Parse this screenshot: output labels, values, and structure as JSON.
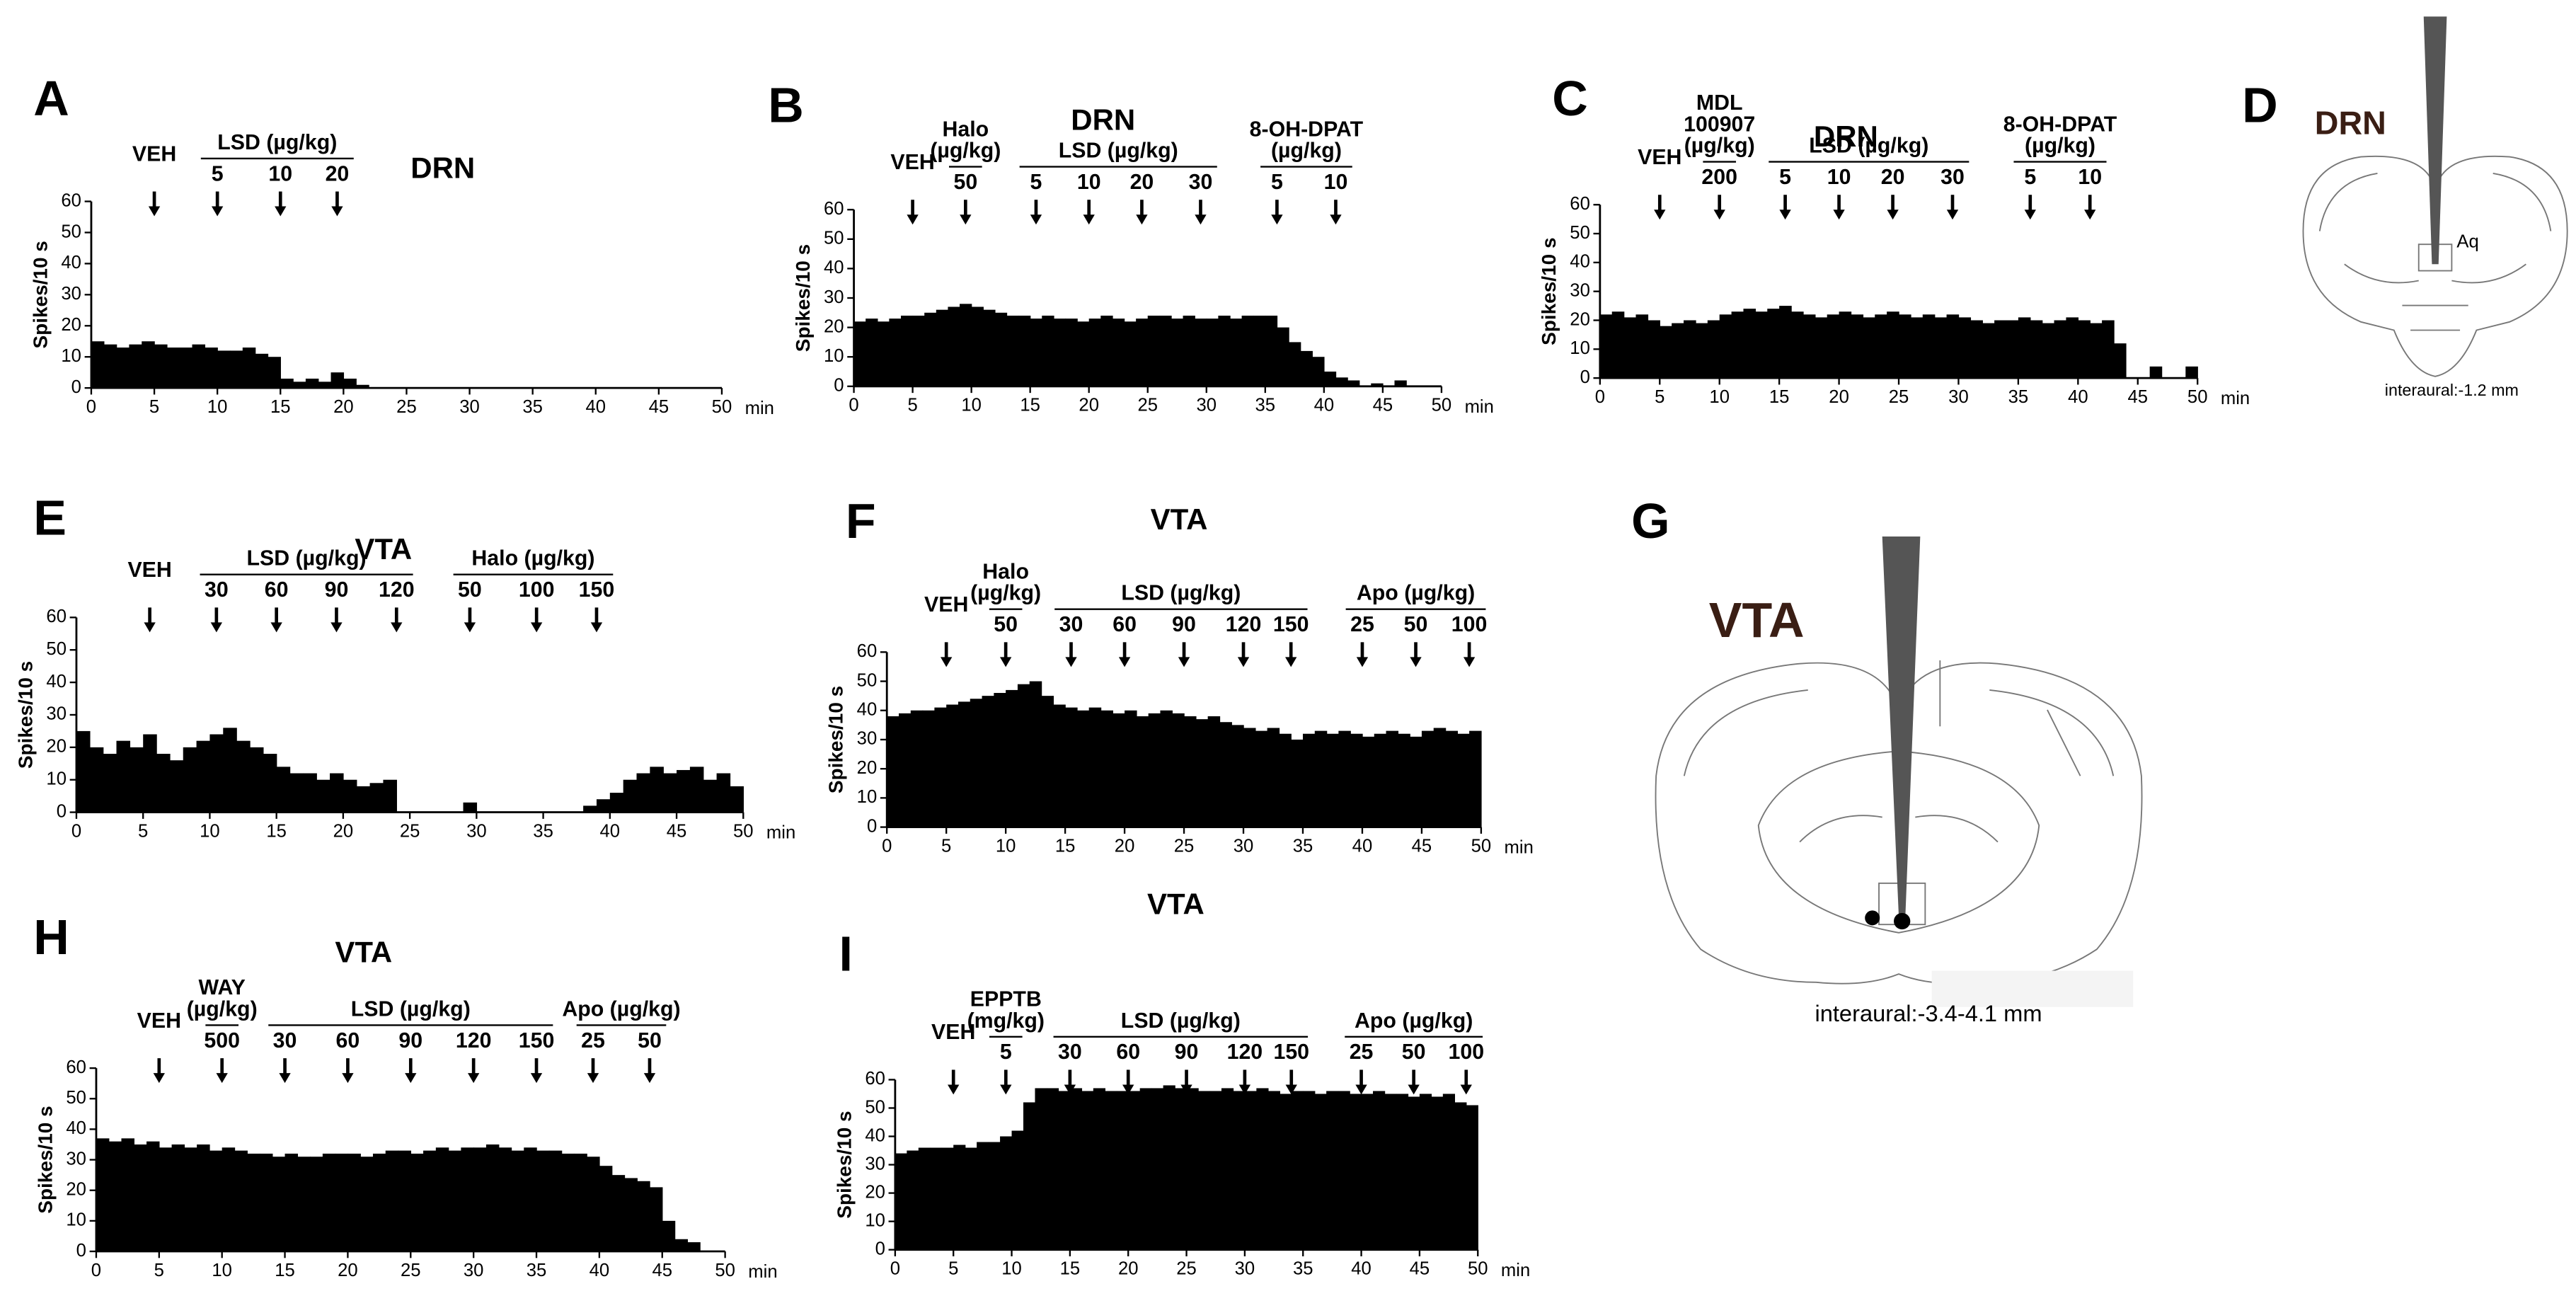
{
  "chart_data": [
    {
      "type": "histogram",
      "label": "A",
      "title": "DRN",
      "ylabel": "Spikes/10 s",
      "xlabel": "min",
      "color": "#000000",
      "bins": [
        0,
        1,
        2,
        3,
        4,
        5,
        6,
        7,
        8,
        9,
        10,
        11,
        12,
        13,
        14,
        15,
        16,
        17,
        18,
        19,
        20,
        21,
        22,
        23,
        24,
        25,
        26,
        27,
        28,
        29,
        30,
        31,
        32,
        33,
        34,
        35,
        36,
        37,
        38,
        39,
        40,
        41,
        42,
        43,
        44,
        45,
        46,
        47,
        48,
        49,
        50
      ],
      "values": [
        15,
        14,
        13,
        14,
        15,
        14,
        13,
        13,
        14,
        13,
        12,
        12,
        13,
        11,
        10,
        3,
        2,
        3,
        2,
        5,
        3,
        1,
        0,
        0,
        0,
        0,
        0,
        0,
        0,
        0,
        0,
        0,
        0,
        0,
        0,
        0,
        0,
        0,
        0,
        0,
        0,
        0,
        0,
        0,
        0,
        0,
        0,
        0,
        0,
        0
      ],
      "xlim": [
        0,
        50
      ],
      "xticks": [
        0,
        5,
        10,
        15,
        20,
        25,
        30,
        35,
        40,
        45,
        50
      ],
      "ylim": [
        0,
        60
      ],
      "yticks": [
        0,
        10,
        20,
        30,
        40,
        50,
        60
      ],
      "markers": [
        {
          "label": "VEH",
          "x": 5
        }
      ],
      "groups": [
        {
          "name": [
            "LSD (µg/kg)"
          ],
          "doses": [
            {
              "label": "5",
              "x": 10
            },
            {
              "label": "10",
              "x": 15
            },
            {
              "label": "20",
              "x": 19.5
            }
          ]
        }
      ]
    },
    {
      "type": "histogram",
      "label": "B",
      "title": "DRN",
      "ylabel": "Spikes/10 s",
      "xlabel": "min",
      "color": "#000000",
      "bins": [
        0,
        1,
        2,
        3,
        4,
        5,
        6,
        7,
        8,
        9,
        10,
        11,
        12,
        13,
        14,
        15,
        16,
        17,
        18,
        19,
        20,
        21,
        22,
        23,
        24,
        25,
        26,
        27,
        28,
        29,
        30,
        31,
        32,
        33,
        34,
        35,
        36,
        37,
        38,
        39,
        40,
        41,
        42,
        43,
        44,
        45,
        46,
        47,
        48,
        49,
        50
      ],
      "values": [
        22,
        23,
        22,
        23,
        24,
        24,
        25,
        26,
        27,
        28,
        27,
        26,
        25,
        24,
        24,
        23,
        24,
        23,
        23,
        22,
        23,
        24,
        23,
        22,
        23,
        24,
        24,
        23,
        24,
        23,
        23,
        24,
        23,
        24,
        24,
        24,
        20,
        15,
        12,
        10,
        5,
        3,
        2,
        0,
        1,
        0,
        2,
        0,
        0,
        0
      ],
      "xlim": [
        0,
        50
      ],
      "xticks": [
        0,
        5,
        10,
        15,
        20,
        25,
        30,
        35,
        40,
        45,
        50
      ],
      "ylim": [
        0,
        60
      ],
      "yticks": [
        0,
        10,
        20,
        30,
        40,
        50,
        60
      ],
      "markers": [
        {
          "label": "VEH",
          "x": 5
        }
      ],
      "groups": [
        {
          "name": [
            "Halo",
            "(µg/kg)"
          ],
          "doses": [
            {
              "label": "50",
              "x": 9.5
            }
          ]
        },
        {
          "name": [
            "LSD (µg/kg)"
          ],
          "doses": [
            {
              "label": "5",
              "x": 15.5
            },
            {
              "label": "10",
              "x": 20
            },
            {
              "label": "20",
              "x": 24.5
            },
            {
              "label": "30",
              "x": 29.5
            }
          ]
        },
        {
          "name": [
            "8-OH-DPAT",
            "(µg/kg)"
          ],
          "doses": [
            {
              "label": "5",
              "x": 36
            },
            {
              "label": "10",
              "x": 41
            }
          ]
        }
      ]
    },
    {
      "type": "histogram",
      "label": "C",
      "title": "DRN",
      "ylabel": "Spikes/10 s",
      "xlabel": "min",
      "color": "#000000",
      "bins": [
        0,
        1,
        2,
        3,
        4,
        5,
        6,
        7,
        8,
        9,
        10,
        11,
        12,
        13,
        14,
        15,
        16,
        17,
        18,
        19,
        20,
        21,
        22,
        23,
        24,
        25,
        26,
        27,
        28,
        29,
        30,
        31,
        32,
        33,
        34,
        35,
        36,
        37,
        38,
        39,
        40,
        41,
        42,
        43,
        44,
        45,
        46,
        47,
        48,
        49,
        50
      ],
      "values": [
        22,
        23,
        21,
        22,
        20,
        18,
        19,
        20,
        19,
        20,
        22,
        23,
        24,
        23,
        24,
        25,
        23,
        22,
        21,
        22,
        23,
        22,
        21,
        22,
        23,
        22,
        21,
        22,
        21,
        22,
        21,
        20,
        19,
        20,
        20,
        21,
        20,
        19,
        20,
        21,
        20,
        19,
        20,
        12,
        0,
        0,
        4,
        0,
        0,
        4
      ],
      "xlim": [
        0,
        50
      ],
      "xticks": [
        0,
        5,
        10,
        15,
        20,
        25,
        30,
        35,
        40,
        45,
        50
      ],
      "ylim": [
        0,
        60
      ],
      "yticks": [
        0,
        10,
        20,
        30,
        40,
        50,
        60
      ],
      "markers": [
        {
          "label": "VEH",
          "x": 5
        }
      ],
      "groups": [
        {
          "name": [
            "MDL",
            "100907",
            "(µg/kg)"
          ],
          "doses": [
            {
              "label": "200",
              "x": 10
            }
          ]
        },
        {
          "name": [
            "LSD (µg/kg)"
          ],
          "doses": [
            {
              "label": "5",
              "x": 15.5
            },
            {
              "label": "10",
              "x": 20
            },
            {
              "label": "20",
              "x": 24.5
            },
            {
              "label": "30",
              "x": 29.5
            }
          ]
        },
        {
          "name": [
            "8-OH-DPAT",
            "(µg/kg)"
          ],
          "doses": [
            {
              "label": "5",
              "x": 36
            },
            {
              "label": "10",
              "x": 41
            }
          ]
        }
      ]
    },
    {
      "type": "histogram",
      "label": "E",
      "title": "VTA",
      "ylabel": "Spikes/10 s",
      "xlabel": "min",
      "color": "#000000",
      "bins": [
        0,
        1,
        2,
        3,
        4,
        5,
        6,
        7,
        8,
        9,
        10,
        11,
        12,
        13,
        14,
        15,
        16,
        17,
        18,
        19,
        20,
        21,
        22,
        23,
        24,
        25,
        26,
        27,
        28,
        29,
        30,
        31,
        32,
        33,
        34,
        35,
        36,
        37,
        38,
        39,
        40,
        41,
        42,
        43,
        44,
        45,
        46,
        47,
        48,
        49,
        50
      ],
      "values": [
        25,
        20,
        18,
        22,
        20,
        24,
        18,
        16,
        20,
        22,
        24,
        26,
        22,
        20,
        18,
        14,
        12,
        12,
        10,
        12,
        10,
        8,
        9,
        10,
        0,
        0,
        0,
        0,
        0,
        3,
        0,
        0,
        0,
        0,
        0,
        0,
        0,
        0,
        2,
        4,
        6,
        10,
        12,
        14,
        12,
        13,
        14,
        10,
        12,
        8
      ],
      "xlim": [
        0,
        50
      ],
      "xticks": [
        0,
        5,
        10,
        15,
        20,
        25,
        30,
        35,
        40,
        45,
        50
      ],
      "ylim": [
        0,
        60
      ],
      "yticks": [
        0,
        10,
        20,
        30,
        40,
        50,
        60
      ],
      "markers": [
        {
          "label": "VEH",
          "x": 5.5
        }
      ],
      "groups": [
        {
          "name": [
            "LSD (µg/kg)"
          ],
          "doses": [
            {
              "label": "30",
              "x": 10.5
            },
            {
              "label": "60",
              "x": 15
            },
            {
              "label": "90",
              "x": 19.5
            },
            {
              "label": "120",
              "x": 24
            }
          ]
        },
        {
          "name": [
            "Halo (µg/kg)"
          ],
          "doses": [
            {
              "label": "50",
              "x": 29.5
            },
            {
              "label": "100",
              "x": 34.5
            },
            {
              "label": "150",
              "x": 39
            }
          ]
        }
      ]
    },
    {
      "type": "histogram",
      "label": "F",
      "title": "VTA",
      "ylabel": "Spikes/10 s",
      "xlabel": "min",
      "color": "#000000",
      "bins": [
        0,
        1,
        2,
        3,
        4,
        5,
        6,
        7,
        8,
        9,
        10,
        11,
        12,
        13,
        14,
        15,
        16,
        17,
        18,
        19,
        20,
        21,
        22,
        23,
        24,
        25,
        26,
        27,
        28,
        29,
        30,
        31,
        32,
        33,
        34,
        35,
        36,
        37,
        38,
        39,
        40,
        41,
        42,
        43,
        44,
        45,
        46,
        47,
        48,
        49,
        50
      ],
      "values": [
        38,
        39,
        40,
        40,
        41,
        42,
        43,
        44,
        45,
        46,
        47,
        49,
        50,
        45,
        42,
        41,
        40,
        41,
        40,
        39,
        40,
        38,
        39,
        40,
        39,
        38,
        37,
        38,
        36,
        35,
        34,
        33,
        34,
        32,
        30,
        32,
        33,
        32,
        33,
        32,
        31,
        32,
        33,
        32,
        31,
        33,
        34,
        33,
        32,
        33
      ],
      "xlim": [
        0,
        50
      ],
      "xticks": [
        0,
        5,
        10,
        15,
        20,
        25,
        30,
        35,
        40,
        45,
        50
      ],
      "ylim": [
        0,
        60
      ],
      "yticks": [
        0,
        10,
        20,
        30,
        40,
        50,
        60
      ],
      "markers": [
        {
          "label": "VEH",
          "x": 5
        }
      ],
      "groups": [
        {
          "name": [
            "Halo",
            "(µg/kg)"
          ],
          "doses": [
            {
              "label": "50",
              "x": 10
            }
          ]
        },
        {
          "name": [
            "LSD (µg/kg)"
          ],
          "doses": [
            {
              "label": "30",
              "x": 15.5
            },
            {
              "label": "60",
              "x": 20
            },
            {
              "label": "90",
              "x": 25
            },
            {
              "label": "120",
              "x": 30
            },
            {
              "label": "150",
              "x": 34
            }
          ]
        },
        {
          "name": [
            "Apo (µg/kg)"
          ],
          "doses": [
            {
              "label": "25",
              "x": 40
            },
            {
              "label": "50",
              "x": 44.5
            },
            {
              "label": "100",
              "x": 49
            }
          ]
        }
      ]
    },
    {
      "type": "histogram",
      "label": "H",
      "title": "VTA",
      "ylabel": "Spikes/10 s",
      "xlabel": "min",
      "color": "#000000",
      "bins": [
        0,
        1,
        2,
        3,
        4,
        5,
        6,
        7,
        8,
        9,
        10,
        11,
        12,
        13,
        14,
        15,
        16,
        17,
        18,
        19,
        20,
        21,
        22,
        23,
        24,
        25,
        26,
        27,
        28,
        29,
        30,
        31,
        32,
        33,
        34,
        35,
        36,
        37,
        38,
        39,
        40,
        41,
        42,
        43,
        44,
        45,
        46,
        47,
        48,
        49,
        50
      ],
      "values": [
        37,
        36,
        37,
        35,
        36,
        34,
        35,
        34,
        35,
        33,
        34,
        33,
        32,
        32,
        31,
        32,
        31,
        31,
        32,
        32,
        32,
        31,
        32,
        33,
        33,
        32,
        33,
        34,
        33,
        34,
        34,
        35,
        34,
        33,
        34,
        33,
        33,
        32,
        32,
        31,
        28,
        25,
        24,
        23,
        21,
        10,
        4,
        3,
        0,
        0
      ],
      "xlim": [
        0,
        50
      ],
      "xticks": [
        0,
        5,
        10,
        15,
        20,
        25,
        30,
        35,
        40,
        45,
        50
      ],
      "ylim": [
        0,
        60
      ],
      "yticks": [
        0,
        10,
        20,
        30,
        40,
        50,
        60
      ],
      "markers": [
        {
          "label": "VEH",
          "x": 5
        }
      ],
      "groups": [
        {
          "name": [
            "WAY",
            "(µg/kg)"
          ],
          "doses": [
            {
              "label": "500",
              "x": 10
            }
          ]
        },
        {
          "name": [
            "LSD (µg/kg)"
          ],
          "doses": [
            {
              "label": "30",
              "x": 15
            },
            {
              "label": "60",
              "x": 20
            },
            {
              "label": "90",
              "x": 25
            },
            {
              "label": "120",
              "x": 30
            },
            {
              "label": "150",
              "x": 35
            }
          ]
        },
        {
          "name": [
            "Apo (µg/kg)"
          ],
          "doses": [
            {
              "label": "25",
              "x": 39.5
            },
            {
              "label": "50",
              "x": 44
            }
          ]
        }
      ]
    },
    {
      "type": "histogram",
      "label": "I",
      "title": "VTA",
      "ylabel": "Spikes/10 s",
      "xlabel": "min",
      "color": "#000000",
      "bins": [
        0,
        1,
        2,
        3,
        4,
        5,
        6,
        7,
        8,
        9,
        10,
        11,
        12,
        13,
        14,
        15,
        16,
        17,
        18,
        19,
        20,
        21,
        22,
        23,
        24,
        25,
        26,
        27,
        28,
        29,
        30,
        31,
        32,
        33,
        34,
        35,
        36,
        37,
        38,
        39,
        40,
        41,
        42,
        43,
        44,
        45,
        46,
        47,
        48,
        49,
        50
      ],
      "values": [
        34,
        35,
        36,
        36,
        36,
        37,
        36,
        38,
        38,
        40,
        42,
        52,
        57,
        57,
        56,
        57,
        56,
        57,
        56,
        56,
        56,
        57,
        57,
        58,
        57,
        57,
        56,
        56,
        57,
        56,
        56,
        57,
        56,
        55,
        56,
        56,
        55,
        56,
        56,
        55,
        55,
        56,
        55,
        55,
        54,
        55,
        54,
        55,
        52,
        51
      ],
      "xlim": [
        0,
        50
      ],
      "xticks": [
        0,
        5,
        10,
        15,
        20,
        25,
        30,
        35,
        40,
        45,
        50
      ],
      "ylim": [
        0,
        60
      ],
      "yticks": [
        0,
        10,
        20,
        30,
        40,
        50,
        60
      ],
      "markers": [
        {
          "label": "VEH",
          "x": 5
        }
      ],
      "groups": [
        {
          "name": [
            "EPPTB",
            "(mg/kg)"
          ],
          "doses": [
            {
              "label": "5",
              "x": 9.5
            }
          ]
        },
        {
          "name": [
            "LSD (µg/kg)"
          ],
          "doses": [
            {
              "label": "30",
              "x": 15
            },
            {
              "label": "60",
              "x": 20
            },
            {
              "label": "90",
              "x": 25
            },
            {
              "label": "120",
              "x": 30
            },
            {
              "label": "150",
              "x": 34
            }
          ]
        },
        {
          "name": [
            "Apo (µg/kg)"
          ],
          "doses": [
            {
              "label": "25",
              "x": 40
            },
            {
              "label": "50",
              "x": 44.5
            },
            {
              "label": "100",
              "x": 49
            }
          ]
        }
      ]
    }
  ],
  "figures": {
    "D": {
      "label": "D",
      "region": "DRN",
      "structure": "Aq",
      "caption": "interaural:-1.2 mm"
    },
    "G": {
      "label": "G",
      "region": "VTA",
      "caption": "interaural:-3.4-4.1 mm"
    }
  }
}
